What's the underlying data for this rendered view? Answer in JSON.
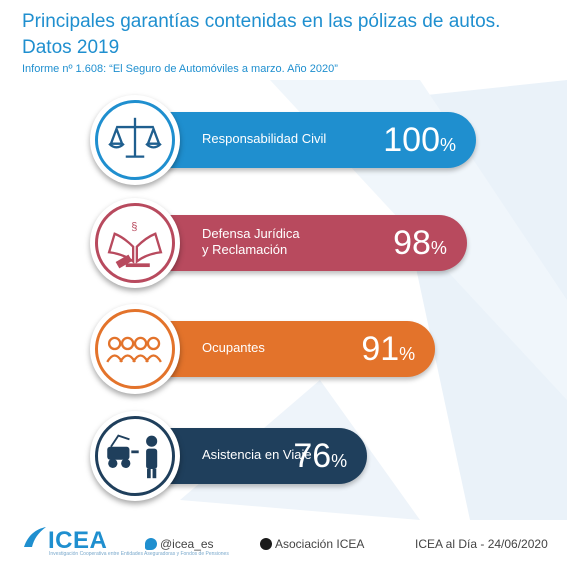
{
  "title": "Principales garantías contenidas en las pólizas de autos. Datos 2019",
  "subtitle": "Informe nº 1.608: “El Seguro de Automóviles a marzo. Año 2020”",
  "chart_data": {
    "type": "bar",
    "orientation": "horizontal",
    "title": "Principales garantías contenidas en las pólizas de autos. Datos 2019",
    "unit": "%",
    "categories": [
      "Responsabilidad Civil",
      "Defensa Jurídica y Reclamación",
      "Ocupantes",
      "Asistencia en Viaje"
    ],
    "values": [
      100,
      98,
      91,
      76
    ],
    "bars": [
      {
        "label_lines": [
          "Responsabilidad Civil"
        ],
        "value": 100,
        "value_text": "100",
        "color": "#1f8fcf",
        "ring": "#1f8fcf",
        "icon": "scales-icon"
      },
      {
        "label_lines": [
          "Defensa Jurídica",
          "y Reclamación"
        ],
        "value": 98,
        "value_text": "98",
        "color": "#b84a5e",
        "ring": "#b84a5e",
        "icon": "law-book-gavel-icon"
      },
      {
        "label_lines": [
          "Ocupantes"
        ],
        "value": 91,
        "value_text": "91",
        "color": "#e3732b",
        "ring": "#e3732b",
        "icon": "people-icon"
      },
      {
        "label_lines": [
          "Asistencia en Viaje"
        ],
        "value": 76,
        "value_text": "76",
        "color": "#1f3f5c",
        "ring": "#1f3f5c",
        "icon": "tow-truck-icon"
      }
    ],
    "pct_symbol": "%"
  },
  "footer": {
    "logo": "ICEA",
    "logo_tagline": "Investigación Cooperativa entre Entidades Aseguradoras y Fondos de Pensiones",
    "twitter": "@icea_es",
    "linkedin": "Asociación ICEA",
    "date": "ICEA al Día - 24/06/2020",
    "brand_color": "#1f8fcf"
  }
}
